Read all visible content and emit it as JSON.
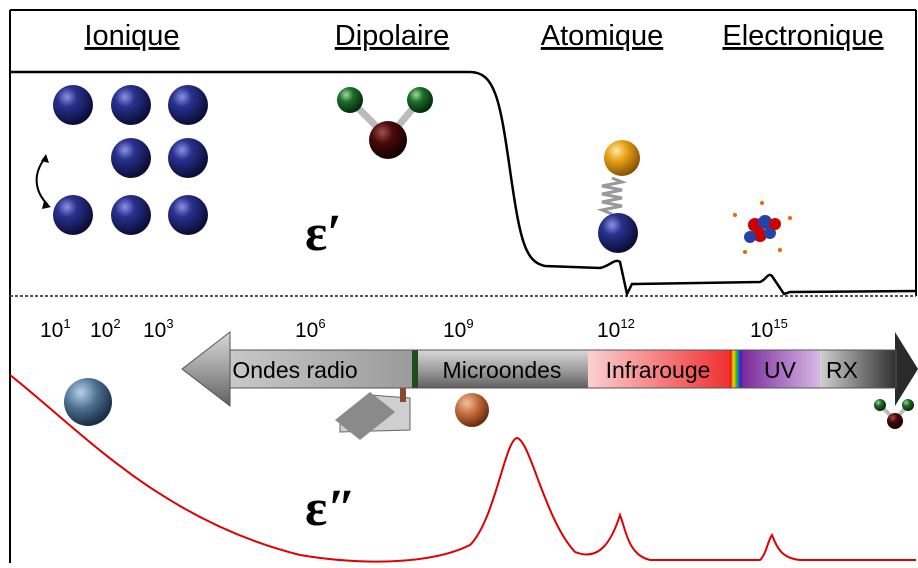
{
  "headers": [
    "Ionique",
    "Dipolaire",
    "Atomique",
    "Electronique"
  ],
  "symbols": {
    "real": {
      "base": "ε",
      "mark": "′"
    },
    "imaginary": {
      "base": "ε",
      "mark": "″"
    }
  },
  "frequencies": [
    {
      "base": "10",
      "exp": "1"
    },
    {
      "base": "10",
      "exp": "2"
    },
    {
      "base": "10",
      "exp": "3"
    },
    {
      "base": "10",
      "exp": "6"
    },
    {
      "base": "10",
      "exp": "9"
    },
    {
      "base": "10",
      "exp": "12"
    },
    {
      "base": "10",
      "exp": "15"
    }
  ],
  "bands": [
    "Ondes radio",
    "Microondes",
    "Infrarouge",
    "UV",
    "RX"
  ]
}
